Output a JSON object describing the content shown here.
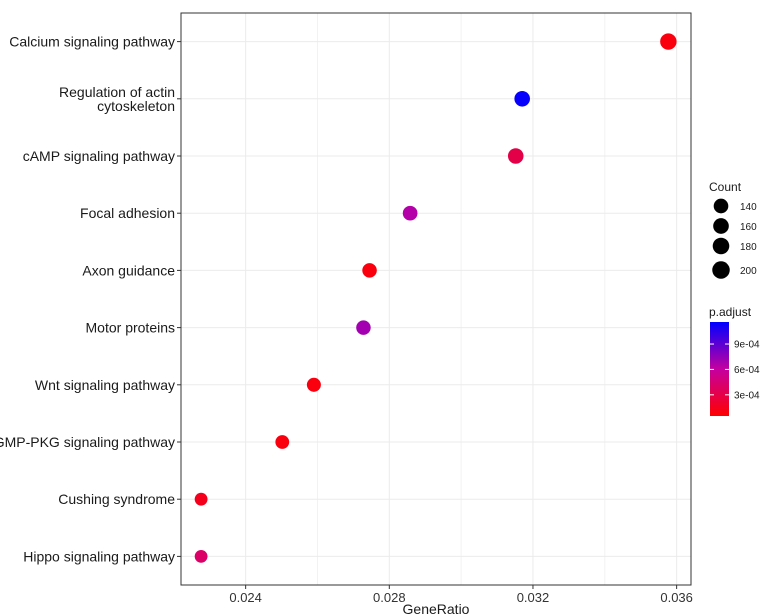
{
  "chart_data": {
    "type": "scatter",
    "title": "",
    "xlabel": "GeneRatio",
    "ylabel": "",
    "xlim": [
      0.0222,
      0.0364
    ],
    "x_ticks": [
      "0.024",
      "0.028",
      "0.032",
      "0.036"
    ],
    "x_tick_values": [
      0.024,
      0.028,
      0.032,
      0.036
    ],
    "grid": true,
    "points": [
      {
        "label": "Calcium signaling pathway",
        "x": 0.03577,
        "count": 205,
        "p_adjust": 0.0001
      },
      {
        "label": "Regulation of actin cytoskeleton",
        "x": 0.0317,
        "count": 185,
        "p_adjust": 0.00114
      },
      {
        "label": "cAMP signaling pathway",
        "x": 0.03152,
        "count": 185,
        "p_adjust": 0.0003
      },
      {
        "label": "Focal adhesion",
        "x": 0.02858,
        "count": 165,
        "p_adjust": 0.00065
      },
      {
        "label": "Axon guidance",
        "x": 0.02745,
        "count": 160,
        "p_adjust": 0.0001
      },
      {
        "label": "Motor proteins",
        "x": 0.02728,
        "count": 160,
        "p_adjust": 0.0007
      },
      {
        "label": "Wnt signaling pathway",
        "x": 0.0259,
        "count": 150,
        "p_adjust": 0.0001
      },
      {
        "label": "cGMP-PKG signaling pathway",
        "x": 0.02502,
        "count": 145,
        "p_adjust": 0.0001
      },
      {
        "label": "Cushing syndrome",
        "x": 0.02276,
        "count": 125,
        "p_adjust": 0.00015
      },
      {
        "label": "Hippo signaling pathway",
        "x": 0.02276,
        "count": 125,
        "p_adjust": 0.0004
      }
    ],
    "legend": {
      "placement": "right",
      "size_title": "Count",
      "size_entries": [
        {
          "label": "140",
          "value": 140
        },
        {
          "label": "160",
          "value": 160
        },
        {
          "label": "180",
          "value": 180
        },
        {
          "label": "200",
          "value": 200
        }
      ],
      "color_title": "p.adjust",
      "color_range": [
        5e-05,
        0.00116
      ],
      "color_ticks": [
        {
          "label": "9e-04",
          "value": 0.0009
        },
        {
          "label": "6e-04",
          "value": 0.0006
        },
        {
          "label": "3e-04",
          "value": 0.0003
        }
      ],
      "color_low": "#ff0000",
      "color_high": "#0000ff"
    }
  }
}
